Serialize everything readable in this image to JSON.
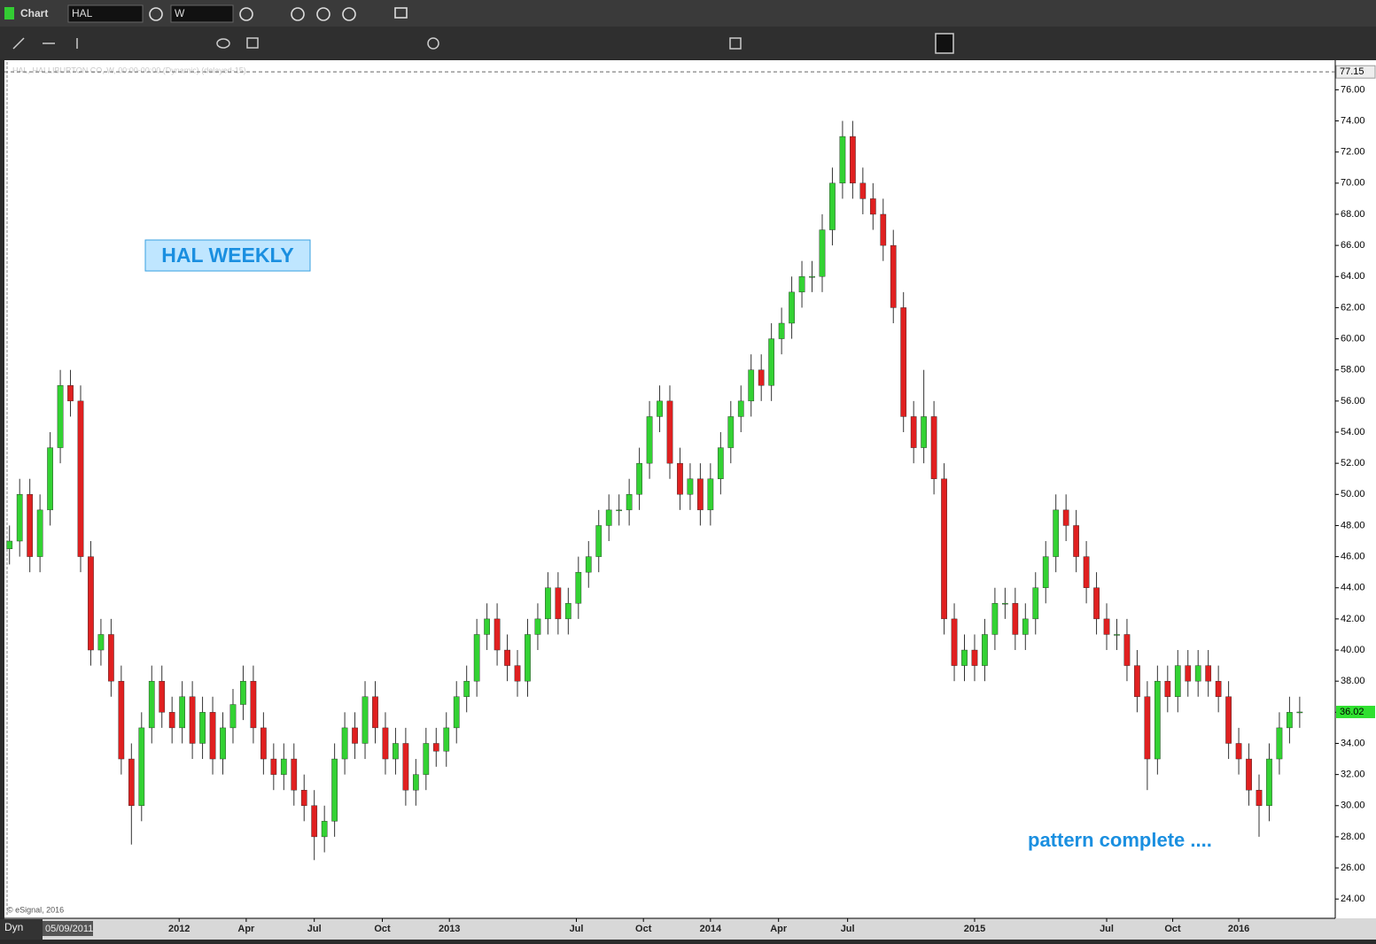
{
  "app": {
    "title": "Chart",
    "symbol": "HAL",
    "interval": "W",
    "mode": "Dyn",
    "start_date": "05/09/2011",
    "copyright": "© eSignal, 2016",
    "chart_header": "HAL, HALLIBURTON CO, W, 00:00-00:00 (Dynamic) (delayed-15)"
  },
  "chart_data": {
    "type": "candlestick",
    "annotations": [
      "HAL WEEKLY",
      "pattern complete ...."
    ],
    "up_color": "#33d233",
    "down_color": "#e02020",
    "categories": [
      null,
      null,
      null,
      null,
      null,
      null,
      null,
      null,
      null,
      null,
      null,
      null,
      null,
      null,
      null,
      null,
      null,
      null,
      null,
      null,
      null,
      null,
      null,
      null,
      null,
      null,
      null,
      null,
      null,
      null,
      null,
      null,
      null,
      null,
      null,
      null,
      null,
      null,
      null,
      null,
      null,
      null,
      null,
      null,
      null,
      null,
      null,
      null,
      null,
      null,
      null,
      null,
      null,
      null,
      null,
      null,
      null,
      null,
      null,
      null,
      null,
      null,
      null,
      null,
      null,
      null,
      null,
      null,
      null,
      null,
      null,
      null,
      null,
      null,
      null,
      null,
      null,
      null,
      null,
      null,
      null,
      null,
      null,
      null,
      null,
      null,
      null,
      null,
      null,
      null,
      null,
      null,
      null,
      null,
      null,
      null,
      null,
      null,
      null,
      null,
      null,
      null,
      null,
      null,
      null,
      null,
      null,
      null,
      null,
      null,
      null,
      null,
      null,
      null,
      null,
      null,
      null,
      null,
      null,
      null,
      null,
      null,
      null,
      null,
      null,
      null,
      null,
      null
    ],
    "open": [
      46.5,
      47,
      50,
      46,
      49,
      53,
      57,
      56,
      46,
      40,
      41,
      38,
      33,
      30,
      35,
      38,
      36,
      35,
      37,
      34,
      36,
      33,
      35,
      36.5,
      38,
      35,
      33,
      32,
      33,
      31,
      30,
      28,
      29,
      33,
      35,
      34,
      37,
      35,
      33,
      34,
      31,
      32,
      34,
      33.5,
      35,
      37,
      38,
      41,
      42,
      40,
      39,
      38,
      41,
      42,
      44,
      42,
      43,
      45,
      46,
      48,
      49,
      49,
      50,
      52,
      55,
      56,
      52,
      50,
      51,
      49,
      51,
      53,
      55,
      56,
      58,
      57,
      60,
      61,
      63,
      64,
      64,
      67,
      70,
      73,
      70,
      69,
      68,
      66,
      62,
      55,
      53,
      55,
      51,
      42,
      39,
      40,
      39,
      41,
      43,
      43,
      41,
      42,
      44,
      46,
      49,
      48,
      46,
      44,
      42,
      41,
      41,
      39,
      37,
      33,
      38,
      37,
      39,
      38,
      39,
      38,
      37,
      34,
      33,
      31,
      30,
      33,
      35,
      36
    ],
    "high": [
      48,
      51,
      51,
      50,
      54,
      58,
      58,
      57,
      47,
      42,
      42,
      39,
      34,
      36,
      39,
      39,
      37,
      38,
      38,
      37,
      37,
      36,
      37.5,
      39,
      39,
      36,
      34,
      34,
      34,
      32,
      31,
      30,
      34,
      36,
      36,
      38,
      38,
      36,
      35,
      35,
      33,
      35,
      35,
      36,
      38,
      39,
      42,
      43,
      43,
      41,
      40,
      42,
      43,
      45,
      45,
      44,
      46,
      47,
      49,
      50,
      50,
      51,
      53,
      56,
      57,
      57,
      53,
      52,
      52,
      52,
      54,
      56,
      57,
      59,
      59,
      61,
      62,
      64,
      65,
      65,
      68,
      71,
      74,
      74,
      71,
      70,
      69,
      67,
      63,
      56,
      58,
      56,
      52,
      43,
      41,
      41,
      42,
      44,
      44,
      44,
      43,
      45,
      47,
      50,
      50,
      49,
      47,
      45,
      43,
      42,
      42,
      40,
      38,
      39,
      39,
      40,
      40,
      40,
      40,
      39,
      38,
      35,
      34,
      32,
      34,
      36,
      37,
      37
    ],
    "low": [
      45.5,
      46,
      45,
      45,
      48,
      52,
      55,
      45,
      39,
      39,
      37,
      32,
      27.5,
      29,
      34,
      35,
      34,
      34,
      33,
      33,
      32,
      32,
      34,
      35.5,
      34,
      32,
      31,
      31,
      30,
      29,
      26.5,
      27,
      28,
      32,
      33,
      33,
      34,
      32,
      32,
      30,
      30,
      31,
      32.5,
      32.5,
      34,
      36,
      37,
      40,
      39,
      38,
      37,
      37,
      40,
      41,
      41,
      41,
      42,
      44,
      45,
      47,
      48,
      48,
      49,
      51,
      54,
      51,
      49,
      49,
      48,
      48,
      50,
      52,
      54,
      55,
      56,
      56,
      59,
      60,
      62,
      63,
      63,
      66,
      69,
      69,
      68,
      67,
      65,
      61,
      54,
      52,
      52,
      50,
      41,
      38,
      38,
      38,
      38,
      40,
      42,
      40,
      40,
      41,
      43,
      45,
      47,
      45,
      43,
      41,
      40,
      40,
      38,
      36,
      31,
      32,
      36,
      36,
      37,
      37,
      37,
      36,
      33,
      32,
      30,
      28,
      29,
      32,
      34,
      35
    ],
    "close": [
      47,
      50,
      46,
      49,
      53,
      57,
      56,
      46,
      40,
      41,
      38,
      33,
      30,
      35,
      38,
      36,
      35,
      37,
      34,
      36,
      33,
      35,
      36.5,
      38,
      35,
      33,
      32,
      33,
      31,
      30,
      28,
      29,
      33,
      35,
      34,
      37,
      35,
      33,
      34,
      31,
      32,
      34,
      33.5,
      35,
      37,
      38,
      41,
      42,
      40,
      39,
      38,
      41,
      42,
      44,
      42,
      43,
      45,
      46,
      48,
      49,
      49,
      50,
      52,
      55,
      56,
      52,
      50,
      51,
      49,
      51,
      53,
      55,
      56,
      58,
      57,
      60,
      61,
      63,
      64,
      64,
      67,
      70,
      73,
      70,
      69,
      68,
      66,
      62,
      55,
      53,
      55,
      51,
      42,
      39,
      40,
      39,
      41,
      43,
      43,
      41,
      42,
      44,
      46,
      49,
      48,
      46,
      44,
      42,
      41,
      41,
      39,
      37,
      33,
      38,
      37,
      39,
      38,
      39,
      38,
      37,
      34,
      33,
      31,
      30,
      33,
      35,
      36,
      36.02
    ],
    "ref_line": {
      "value": 77.15,
      "label": "77.15"
    },
    "last_price": 36.02,
    "xlim": [
      -0.5,
      130.5
    ],
    "xticks": [
      {
        "value": 16.7,
        "label": "2012"
      },
      {
        "value": 23.3,
        "label": "Apr"
      },
      {
        "value": 30,
        "label": "Jul"
      },
      {
        "value": 36.7,
        "label": "Oct"
      },
      {
        "value": 43.3,
        "label": "2013"
      },
      {
        "value": 55.8,
        "label": "Jul"
      },
      {
        "value": 62.4,
        "label": "Oct"
      },
      {
        "value": 69,
        "label": "2014"
      },
      {
        "value": 75.7,
        "label": "Apr"
      },
      {
        "value": 82.5,
        "label": "Jul"
      },
      {
        "value": 95,
        "label": "2015"
      },
      {
        "value": 108,
        "label": "Jul"
      },
      {
        "value": 114.5,
        "label": "Oct"
      },
      {
        "value": 121,
        "label": "2016"
      }
    ],
    "ylim": [
      22.76,
      77.9
    ],
    "yticks": [
      {
        "value": 24,
        "label": "24.00"
      },
      {
        "value": 26,
        "label": "26.00"
      },
      {
        "value": 28,
        "label": "28.00"
      },
      {
        "value": 30,
        "label": "30.00"
      },
      {
        "value": 32,
        "label": "32.00"
      },
      {
        "value": 34,
        "label": "34.00"
      },
      {
        "value": 36,
        "label": "36.00"
      },
      {
        "value": 38,
        "label": "38.00"
      },
      {
        "value": 40,
        "label": "40.00"
      },
      {
        "value": 42,
        "label": "42.00"
      },
      {
        "value": 44,
        "label": "44.00"
      },
      {
        "value": 46,
        "label": "46.00"
      },
      {
        "value": 48,
        "label": "48.00"
      },
      {
        "value": 50,
        "label": "50.00"
      },
      {
        "value": 52,
        "label": "52.00"
      },
      {
        "value": 54,
        "label": "54.00"
      },
      {
        "value": 56,
        "label": "56.00"
      },
      {
        "value": 58,
        "label": "58.00"
      },
      {
        "value": 60,
        "label": "60.00"
      },
      {
        "value": 62,
        "label": "62.00"
      },
      {
        "value": 64,
        "label": "64.00"
      },
      {
        "value": 66,
        "label": "66.00"
      },
      {
        "value": 68,
        "label": "68.00"
      },
      {
        "value": 70,
        "label": "70.00"
      },
      {
        "value": 72,
        "label": "72.00"
      },
      {
        "value": 74,
        "label": "74.00"
      },
      {
        "value": 76,
        "label": "76.00"
      }
    ],
    "grid": false
  }
}
